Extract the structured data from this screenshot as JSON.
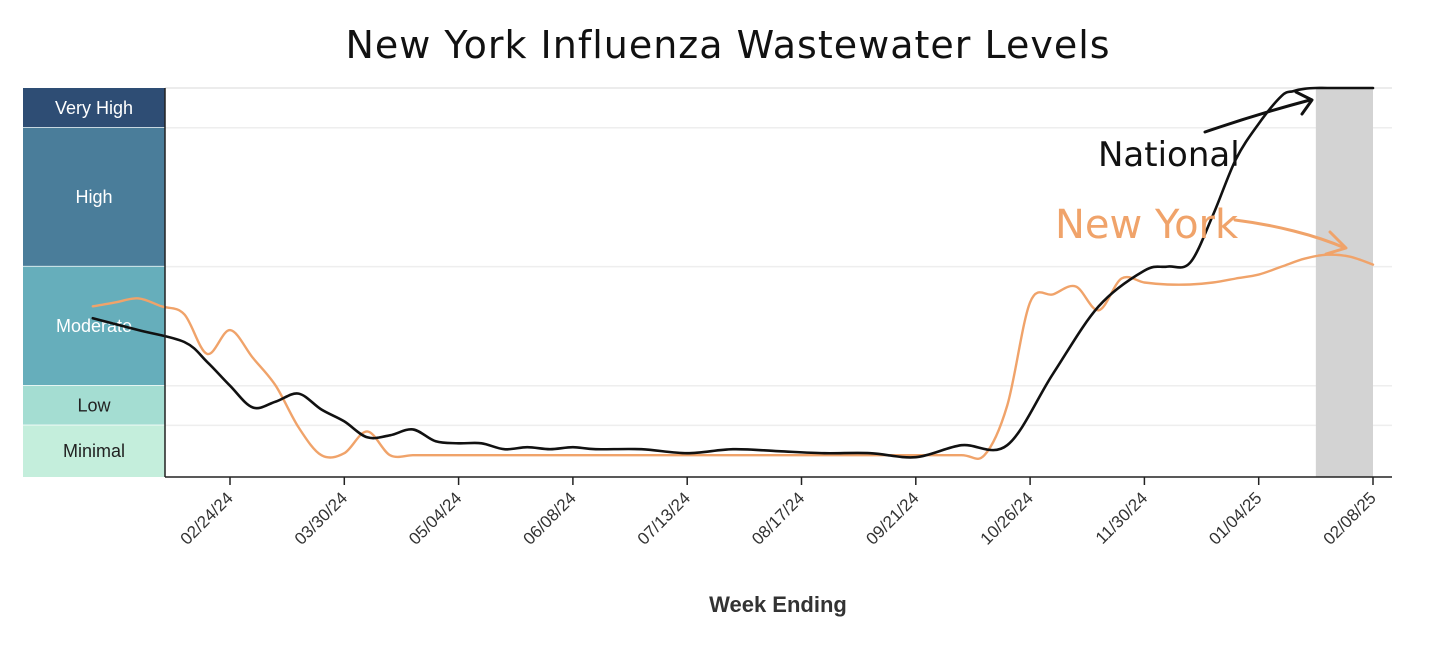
{
  "chart_data": {
    "type": "line",
    "title": "New York Influenza Wastewater Levels",
    "xlabel": "Week Ending",
    "ylabel": "",
    "levels": [
      {
        "label": "Very High",
        "from": 8,
        "to": 9,
        "color": "#2e4d74",
        "text_color": "#ffffff"
      },
      {
        "label": "High",
        "from": 4.5,
        "to": 8,
        "color": "#4a7d9a",
        "text_color": "#ffffff"
      },
      {
        "label": "Moderate",
        "from": 1.5,
        "to": 4.5,
        "color": "#66aebb",
        "text_color": "#ffffff"
      },
      {
        "label": "Low",
        "from": 0.5,
        "to": 1.5,
        "color": "#a4ddd2",
        "text_color": "#222222"
      },
      {
        "label": "Minimal",
        "from": 0,
        "to": 0.5,
        "color": "#c4eedc",
        "text_color": "#222222"
      }
    ],
    "ylim": [
      -0.8,
      9
    ],
    "x_tick_labels": [
      "02/24/24",
      "03/30/24",
      "05/04/24",
      "06/08/24",
      "07/13/24",
      "08/17/24",
      "09/21/24",
      "10/26/24",
      "11/30/24",
      "01/04/25",
      "02/08/25"
    ],
    "xlim": [
      -6.5,
      50
    ],
    "shaded_week_range": [
      47.5,
      50
    ],
    "series": [
      {
        "name": "National",
        "color": "#111111",
        "x": [
          -6,
          -4,
          -2,
          -1,
          0,
          1,
          2,
          3,
          4,
          5,
          6,
          7,
          8,
          9,
          10,
          11,
          12,
          13,
          14,
          15,
          16,
          18,
          20,
          22,
          24,
          26,
          28,
          30,
          32,
          34,
          36,
          38,
          40,
          41,
          42,
          43,
          44,
          45,
          46,
          46.5,
          47,
          47.5,
          48,
          49,
          50
        ],
        "y": [
          3.2,
          2.9,
          2.6,
          2.1,
          1.5,
          0.95,
          1.1,
          1.3,
          0.9,
          0.6,
          0.2,
          0.25,
          0.4,
          0.1,
          0.05,
          0.05,
          -0.1,
          -0.05,
          -0.1,
          -0.05,
          -0.1,
          -0.1,
          -0.2,
          -0.1,
          -0.15,
          -0.2,
          -0.2,
          -0.3,
          0.0,
          0.0,
          1.8,
          3.5,
          4.4,
          4.5,
          4.6,
          5.8,
          7.2,
          8.1,
          8.8,
          8.92,
          8.98,
          9.0,
          9.0,
          9.0,
          9.0
        ]
      },
      {
        "name": "New York",
        "color": "#f0a36a",
        "x": [
          -6,
          -5,
          -4,
          -3,
          -2,
          -1,
          0,
          1,
          2,
          3,
          4,
          5,
          6,
          7,
          8,
          9,
          10,
          11,
          12,
          14,
          16,
          18,
          20,
          22,
          24,
          26,
          28,
          30,
          32,
          33,
          34,
          35,
          36,
          37,
          38,
          39,
          40,
          41,
          42,
          43,
          44,
          45,
          46,
          47,
          48,
          49,
          50
        ],
        "y": [
          3.5,
          3.6,
          3.7,
          3.5,
          3.3,
          2.3,
          2.9,
          2.2,
          1.5,
          0.45,
          -0.25,
          -0.2,
          0.35,
          -0.25,
          -0.25,
          -0.25,
          -0.25,
          -0.25,
          -0.25,
          -0.25,
          -0.25,
          -0.25,
          -0.25,
          -0.25,
          -0.25,
          -0.25,
          -0.25,
          -0.25,
          -0.25,
          -0.25,
          1.0,
          3.6,
          3.8,
          4.0,
          3.4,
          4.2,
          4.1,
          4.05,
          4.05,
          4.1,
          4.2,
          4.3,
          4.5,
          4.7,
          4.8,
          4.75,
          4.55
        ]
      }
    ],
    "annotations": [
      {
        "text": "National",
        "color": "#111111",
        "target_series": "National"
      },
      {
        "text": "New York",
        "color": "#f0a36a",
        "target_series": "New York"
      }
    ]
  }
}
